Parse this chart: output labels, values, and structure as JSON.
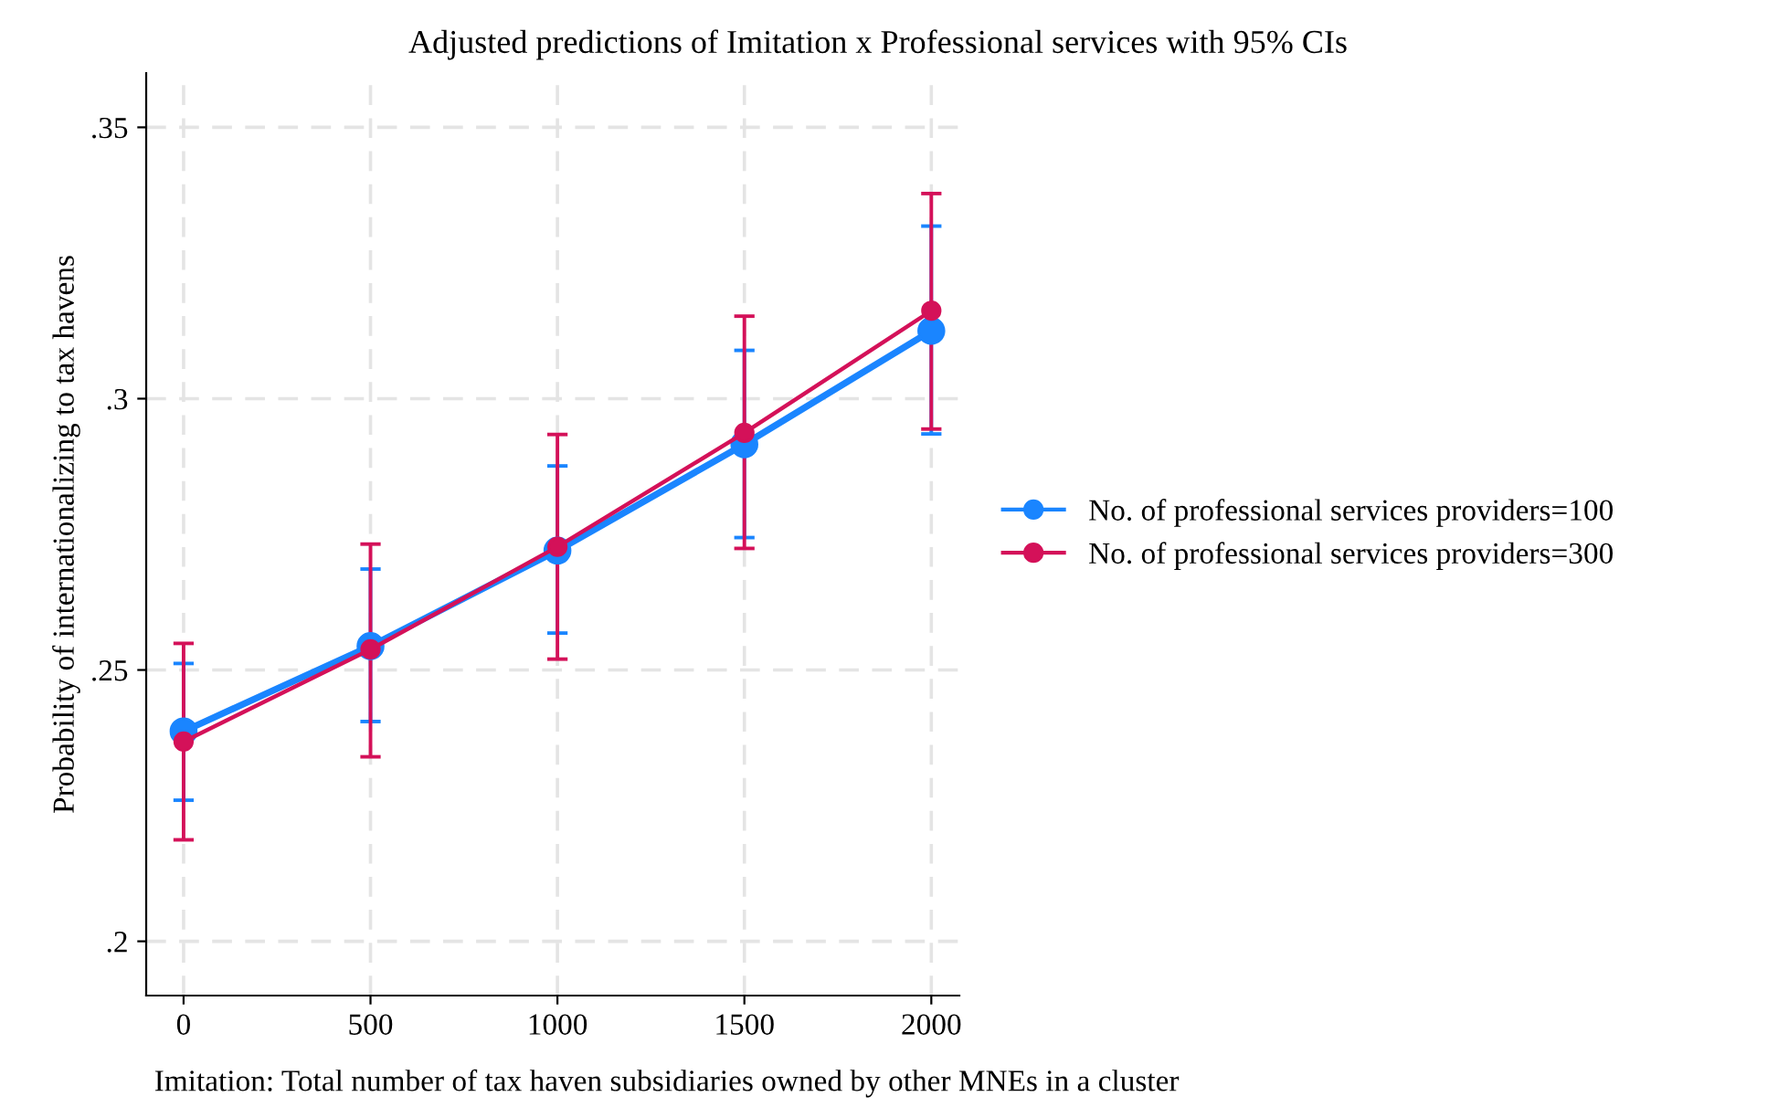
{
  "chart_data": {
    "type": "line",
    "title": "Adjusted predictions of Imitation x Professional services with 95% CIs",
    "xlabel": "Imitation: Total number of tax haven subsidiaries owned by other MNEs in a cluster",
    "ylabel": "Probability of internationalizing to tax havens",
    "x": [
      0,
      500,
      1000,
      1500,
      2000
    ],
    "series": [
      {
        "name": "No. of professional services providers=100",
        "color": "#1a85ff",
        "values": [
          0.2387,
          0.2544,
          0.272,
          0.2916,
          0.3125
        ],
        "errors": [
          [
            0.226,
            0.2512
          ],
          [
            0.2405,
            0.2686
          ],
          [
            0.2568,
            0.2876
          ],
          [
            0.2744,
            0.3089
          ],
          [
            0.2935,
            0.3318
          ]
        ]
      },
      {
        "name": "No. of professional services providers=300",
        "color": "#d41159",
        "values": [
          0.2368,
          0.2538,
          0.2727,
          0.2937,
          0.3162
        ],
        "errors": [
          [
            0.2187,
            0.2549
          ],
          [
            0.234,
            0.2732
          ],
          [
            0.252,
            0.2934
          ],
          [
            0.2724,
            0.3152
          ],
          [
            0.2944,
            0.3378
          ]
        ]
      }
    ],
    "xlim": [
      -100,
      2075
    ],
    "ylim": [
      0.19,
      0.36
    ],
    "xticks": [
      0,
      500,
      1000,
      1500,
      2000
    ],
    "yticks": [
      {
        "value": 0.2,
        "label": ".2"
      },
      {
        "value": 0.25,
        "label": ".25"
      },
      {
        "value": 0.3,
        "label": ".3"
      },
      {
        "value": 0.35,
        "label": ".35"
      }
    ],
    "grid": true,
    "legend": "right",
    "marker": "circle",
    "line_style": "solid"
  }
}
